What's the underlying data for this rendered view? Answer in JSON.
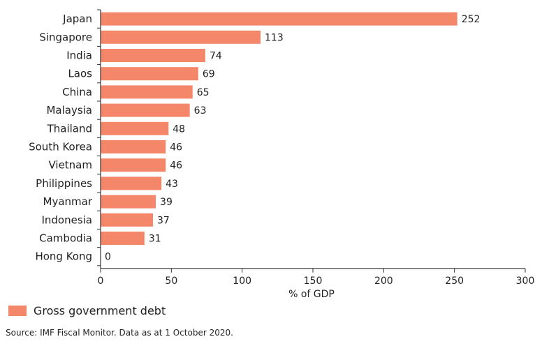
{
  "chart_data": {
    "type": "bar",
    "orientation": "horizontal",
    "categories": [
      "Japan",
      "Singapore",
      "India",
      "Laos",
      "China",
      "Malaysia",
      "Thailand",
      "South Korea",
      "Vietnam",
      "Philippines",
      "Myanmar",
      "Indonesia",
      "Cambodia",
      "Hong Kong"
    ],
    "values": [
      252,
      113,
      74,
      69,
      65,
      63,
      48,
      46,
      46,
      43,
      39,
      37,
      31,
      0
    ],
    "xlabel": "% of GDP",
    "ylabel": "",
    "xlim": [
      0,
      300
    ],
    "xticks": [
      0,
      50,
      100,
      150,
      200,
      250,
      300
    ],
    "series_name": "Gross government debt",
    "bar_color": "#f4876a",
    "grid": false
  },
  "legend": {
    "label": "Gross government debt"
  },
  "source": "Source: IMF Fiscal Monitor. Data as at 1 October 2020."
}
